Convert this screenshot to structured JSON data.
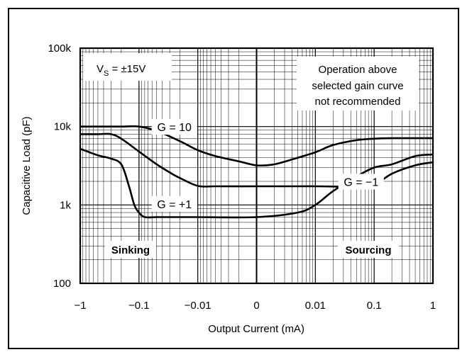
{
  "chart_data": {
    "type": "line",
    "title": "",
    "xlabel": "Output Current (mA)",
    "ylabel": "Capacitive Load (pF)",
    "x_scale": "symmetric-log",
    "y_scale": "log",
    "ylim": [
      100,
      100000
    ],
    "x_ticks": [
      {
        "value": -1,
        "label": "−1"
      },
      {
        "value": -0.1,
        "label": "−0.1"
      },
      {
        "value": -0.01,
        "label": "−0.01"
      },
      {
        "value": 0,
        "label": "0"
      },
      {
        "value": 0.01,
        "label": "0.01"
      },
      {
        "value": 0.1,
        "label": "0.1"
      },
      {
        "value": 1,
        "label": "1"
      }
    ],
    "y_ticks": [
      {
        "value": 100,
        "label": "100"
      },
      {
        "value": 1000,
        "label": "1k"
      },
      {
        "value": 10000,
        "label": "10k"
      },
      {
        "value": 100000,
        "label": "100k"
      }
    ],
    "grid": true,
    "series": [
      {
        "name": "G = 10",
        "x": [
          -1,
          -0.5,
          -0.2,
          -0.1,
          -0.05,
          -0.02,
          -0.01,
          -0.005,
          -0.002,
          0,
          0.002,
          0.005,
          0.01,
          0.02,
          0.05,
          0.1,
          0.2,
          0.5,
          1
        ],
        "y": [
          10000,
          10000,
          10000,
          10000,
          8800,
          6500,
          5000,
          4200,
          3600,
          3200,
          3300,
          4000,
          4700,
          5800,
          6700,
          7000,
          7100,
          7100,
          7100
        ]
      },
      {
        "name": "G = −1",
        "x": [
          -1,
          -0.5,
          -0.3,
          -0.2,
          -0.1,
          -0.05,
          -0.03,
          -0.02,
          -0.01,
          -0.005,
          0,
          0.005,
          0.01,
          0.02,
          0.05,
          0.1,
          0.2,
          0.5,
          1
        ],
        "y": [
          8000,
          8000,
          8000,
          7000,
          4800,
          3300,
          2600,
          2200,
          1750,
          1730,
          1730,
          1730,
          1730,
          1720,
          1700,
          1800,
          2500,
          3200,
          3500
        ]
      },
      {
        "name": "G = +1",
        "x": [
          -1,
          -0.5,
          -0.3,
          -0.2,
          -0.15,
          -0.12,
          -0.1,
          -0.08,
          -0.05,
          -0.02,
          -0.01,
          0,
          0.005,
          0.01,
          0.02,
          0.05,
          0.1,
          0.2,
          0.5,
          1
        ],
        "y": [
          5200,
          4300,
          3900,
          3300,
          1800,
          1000,
          800,
          700,
          700,
          700,
          700,
          700,
          800,
          1000,
          1500,
          2300,
          3000,
          3300,
          4200,
          4400
        ]
      }
    ],
    "curve_labels": [
      {
        "text": "G = 10",
        "x": -0.025,
        "y": 9500
      },
      {
        "text": "G = −1",
        "x": 0.06,
        "y": 1900
      },
      {
        "text": "G = +1",
        "x": -0.025,
        "y": 990
      }
    ],
    "annotations": {
      "supply_label": "V",
      "supply_subscript": "S",
      "supply_value": " = ±15V",
      "note_lines": [
        "Operation above",
        "selected gain curve",
        "not recommended"
      ],
      "sinking": "Sinking",
      "sourcing": "Sourcing"
    }
  }
}
